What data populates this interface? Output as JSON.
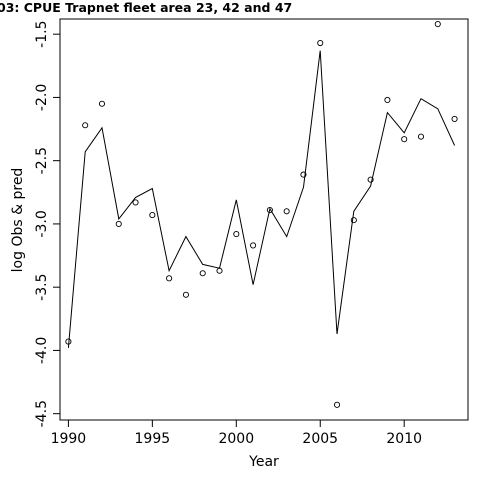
{
  "chart_data": {
    "type": "scatter",
    "title": "03: CPUE Trapnet fleet area 23, 42 and 47",
    "xlabel": "Year",
    "ylabel": "log Obs & pred",
    "xlim": [
      1989.5,
      2013.8
    ],
    "ylim": [
      -4.55,
      -1.38
    ],
    "x_ticks": [
      1990,
      1995,
      2000,
      2005,
      2010
    ],
    "y_ticks": [
      -4.5,
      -4.0,
      -3.5,
      -3.0,
      -2.5,
      -2.0,
      -1.5
    ],
    "y_tick_labels": [
      "-4.5",
      "-4.0",
      "-3.5",
      "-3.0",
      "-2.5",
      "-2.0",
      "-1.5"
    ],
    "grid": false,
    "series": [
      {
        "style": "points",
        "x": [
          1990,
          1991,
          1992,
          1993,
          1994,
          1995,
          1996,
          1997,
          1998,
          1999,
          2000,
          2001,
          2002,
          2003,
          2004,
          2005,
          2006,
          2007,
          2008,
          2009,
          2010,
          2011,
          2012,
          2013
        ],
        "y": [
          -3.93,
          -2.22,
          -2.05,
          -3.0,
          -2.83,
          -2.93,
          -3.43,
          -3.56,
          -3.39,
          -3.37,
          -3.08,
          -3.17,
          -2.89,
          -2.9,
          -2.61,
          -1.57,
          -4.43,
          -2.97,
          -2.65,
          -2.02,
          -2.33,
          -2.31,
          -1.42,
          -2.17
        ]
      },
      {
        "style": "line",
        "x": [
          1990,
          1991,
          1992,
          1993,
          1994,
          1995,
          1996,
          1997,
          1998,
          1999,
          2000,
          2001,
          2002,
          2003,
          2004,
          2005,
          2006,
          2007,
          2008,
          2009,
          2010,
          2011,
          2012,
          2013
        ],
        "y": [
          -3.98,
          -2.43,
          -2.24,
          -2.96,
          -2.79,
          -2.72,
          -3.37,
          -3.1,
          -3.32,
          -3.35,
          -2.81,
          -3.48,
          -2.88,
          -3.1,
          -2.71,
          -1.63,
          -3.87,
          -2.9,
          -2.7,
          -2.12,
          -2.28,
          -2.01,
          -2.09,
          -2.38
        ]
      }
    ]
  }
}
